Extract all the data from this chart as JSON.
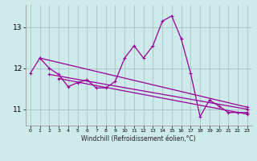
{
  "xlabel": "Windchill (Refroidissement éolien,°C)",
  "bg_color": "#ceeaea",
  "grid_color": "#aacccc",
  "line_color": "#990099",
  "xlim": [
    -0.5,
    23.5
  ],
  "ylim": [
    10.6,
    13.55
  ],
  "yticks": [
    11,
    12,
    13
  ],
  "xticks": [
    0,
    1,
    2,
    3,
    4,
    5,
    6,
    7,
    8,
    9,
    10,
    11,
    12,
    13,
    14,
    15,
    16,
    17,
    18,
    19,
    20,
    21,
    22,
    23
  ],
  "main_x": [
    0,
    1,
    2,
    3,
    4,
    5,
    6,
    7,
    8,
    9,
    10,
    11,
    12,
    13,
    14,
    15,
    16,
    17,
    18,
    19,
    20,
    21,
    22,
    23
  ],
  "main_y": [
    11.88,
    12.25,
    12.0,
    11.85,
    11.55,
    11.65,
    11.72,
    11.52,
    11.52,
    11.68,
    12.25,
    12.55,
    12.25,
    12.55,
    13.15,
    13.28,
    12.72,
    11.88,
    10.82,
    11.22,
    11.08,
    10.92,
    10.92,
    10.92
  ],
  "trend1_x": [
    1,
    23
  ],
  "trend1_y": [
    12.25,
    11.05
  ],
  "trend2_x": [
    2,
    23
  ],
  "trend2_y": [
    11.85,
    11.0
  ],
  "trend3_x": [
    3,
    23
  ],
  "trend3_y": [
    11.75,
    10.88
  ]
}
